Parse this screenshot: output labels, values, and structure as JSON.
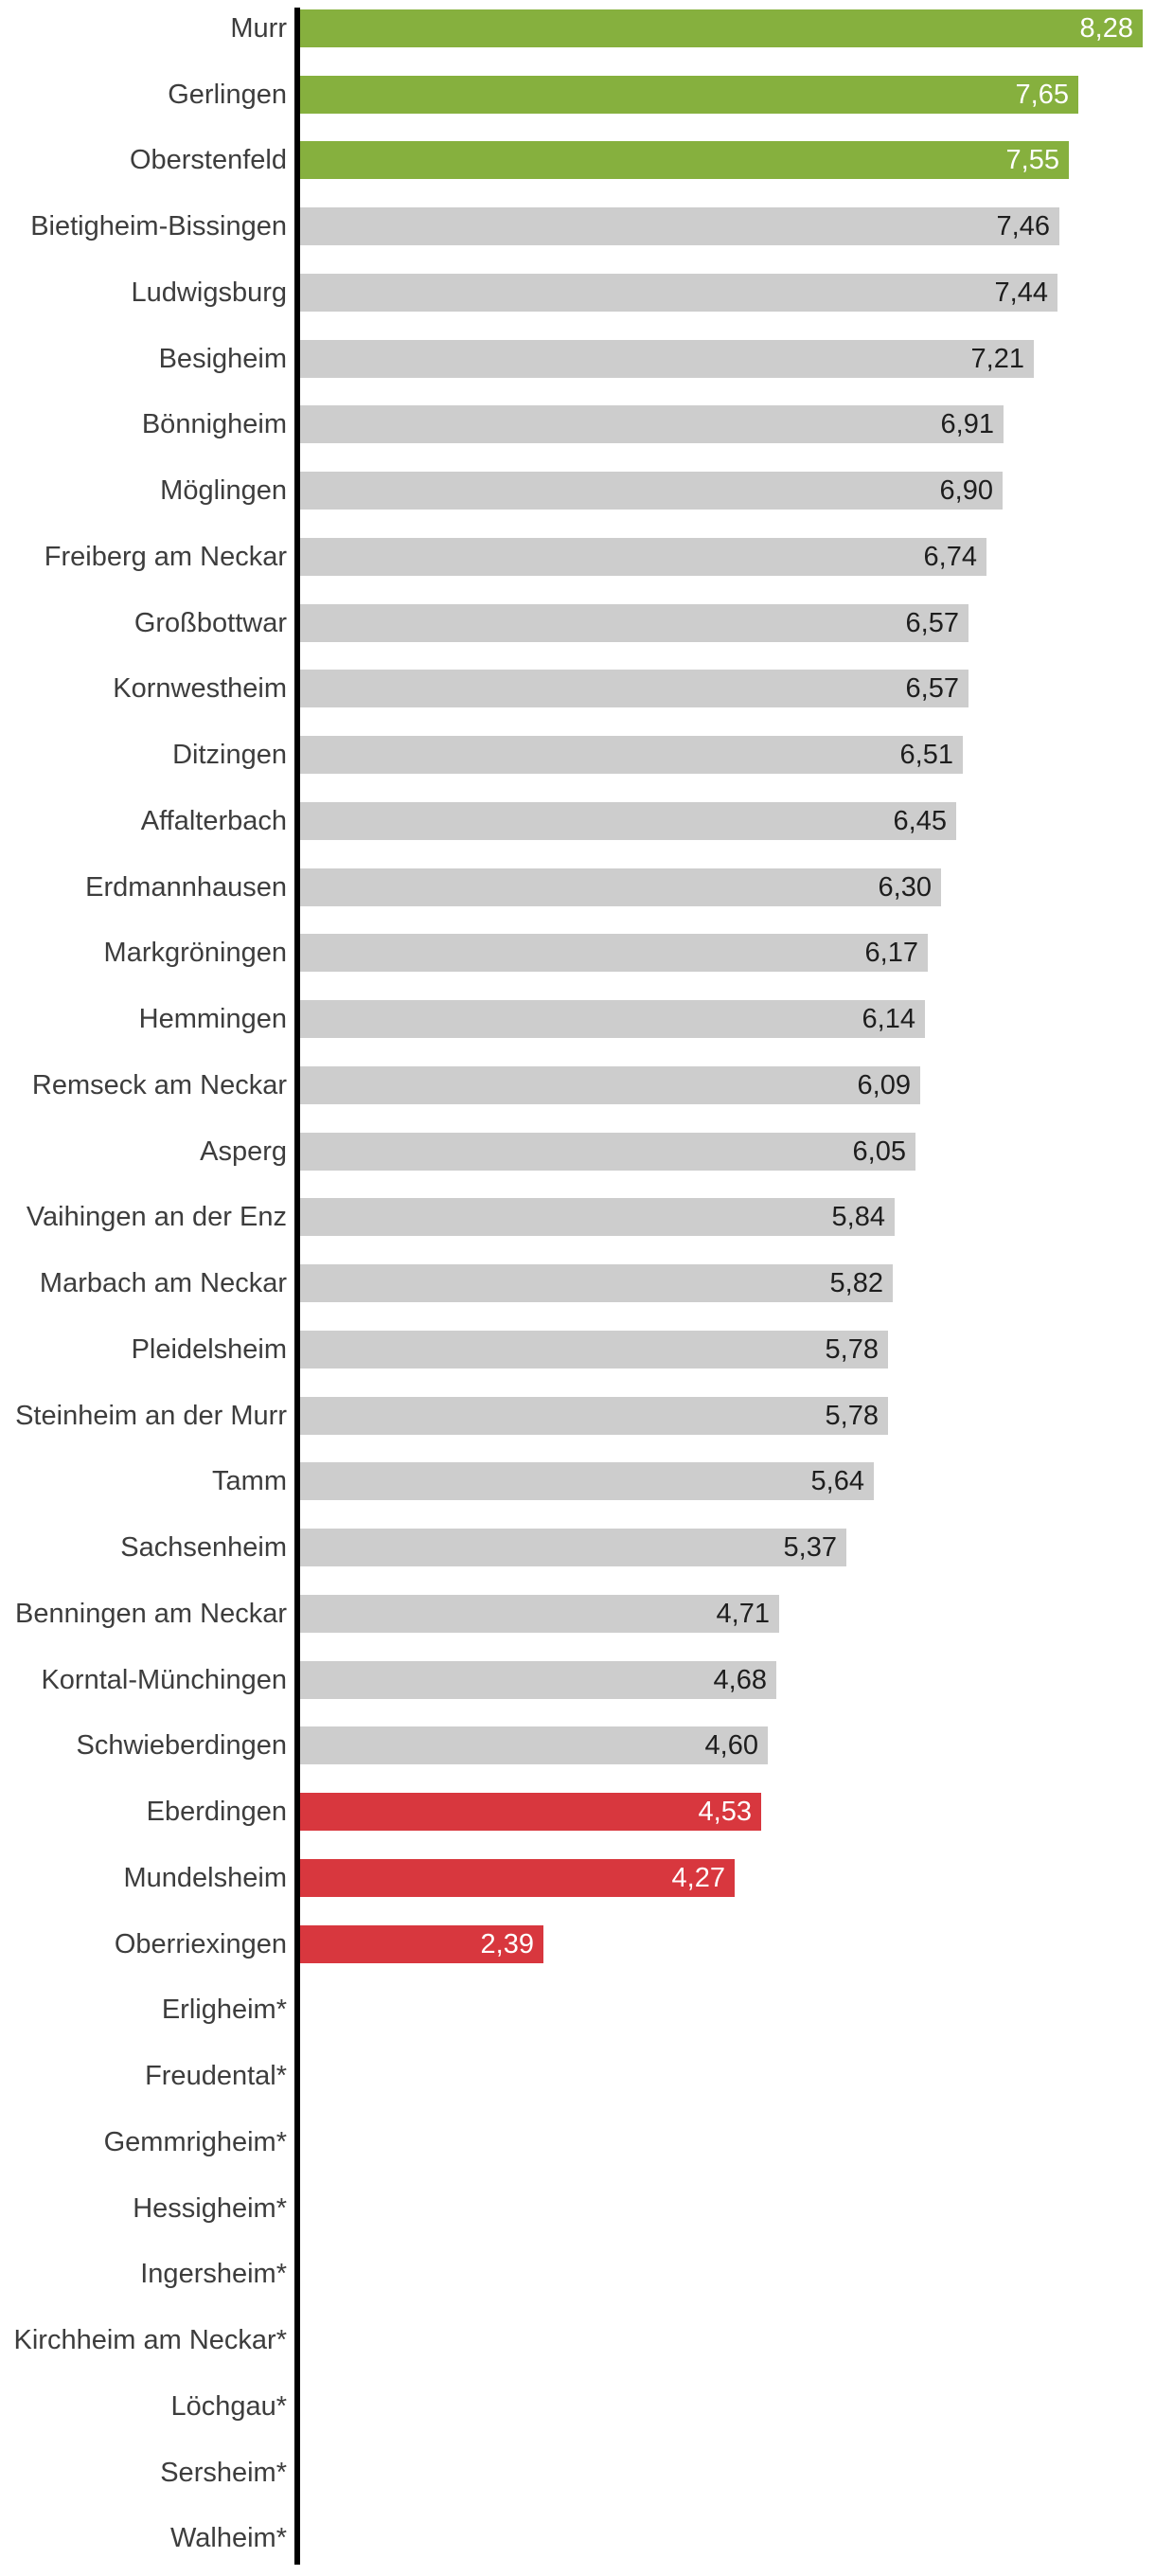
{
  "chart_data": {
    "type": "bar",
    "orientation": "horizontal",
    "title": "",
    "xlabel": "",
    "ylabel": "",
    "xlim": [
      0,
      8.28
    ],
    "grid": false,
    "legend": false,
    "value_format": "decimal-comma, two places",
    "rows": [
      {
        "label": "Murr",
        "value": 8.28,
        "display": "8,28",
        "color": "green"
      },
      {
        "label": "Gerlingen",
        "value": 7.65,
        "display": "7,65",
        "color": "green"
      },
      {
        "label": "Oberstenfeld",
        "value": 7.55,
        "display": "7,55",
        "color": "green"
      },
      {
        "label": "Bietigheim-Bissingen",
        "value": 7.46,
        "display": "7,46",
        "color": "gray"
      },
      {
        "label": "Ludwigsburg",
        "value": 7.44,
        "display": "7,44",
        "color": "gray"
      },
      {
        "label": "Besigheim",
        "value": 7.21,
        "display": "7,21",
        "color": "gray"
      },
      {
        "label": "Bönnigheim",
        "value": 6.91,
        "display": "6,91",
        "color": "gray"
      },
      {
        "label": "Möglingen",
        "value": 6.9,
        "display": "6,90",
        "color": "gray"
      },
      {
        "label": "Freiberg am Neckar",
        "value": 6.74,
        "display": "6,74",
        "color": "gray"
      },
      {
        "label": "Großbottwar",
        "value": 6.57,
        "display": "6,57",
        "color": "gray"
      },
      {
        "label": "Kornwestheim",
        "value": 6.57,
        "display": "6,57",
        "color": "gray"
      },
      {
        "label": "Ditzingen",
        "value": 6.51,
        "display": "6,51",
        "color": "gray"
      },
      {
        "label": "Affalterbach",
        "value": 6.45,
        "display": "6,45",
        "color": "gray"
      },
      {
        "label": "Erdmannhausen",
        "value": 6.3,
        "display": "6,30",
        "color": "gray"
      },
      {
        "label": "Markgröningen",
        "value": 6.17,
        "display": "6,17",
        "color": "gray"
      },
      {
        "label": "Hemmingen",
        "value": 6.14,
        "display": "6,14",
        "color": "gray"
      },
      {
        "label": "Remseck am Neckar",
        "value": 6.09,
        "display": "6,09",
        "color": "gray"
      },
      {
        "label": "Asperg",
        "value": 6.05,
        "display": "6,05",
        "color": "gray"
      },
      {
        "label": "Vaihingen an der Enz",
        "value": 5.84,
        "display": "5,84",
        "color": "gray"
      },
      {
        "label": "Marbach am Neckar",
        "value": 5.82,
        "display": "5,82",
        "color": "gray"
      },
      {
        "label": "Pleidelsheim",
        "value": 5.78,
        "display": "5,78",
        "color": "gray"
      },
      {
        "label": "Steinheim an der Murr",
        "value": 5.78,
        "display": "5,78",
        "color": "gray"
      },
      {
        "label": "Tamm",
        "value": 5.64,
        "display": "5,64",
        "color": "gray"
      },
      {
        "label": "Sachsenheim",
        "value": 5.37,
        "display": "5,37",
        "color": "gray"
      },
      {
        "label": "Benningen am Neckar",
        "value": 4.71,
        "display": "4,71",
        "color": "gray"
      },
      {
        "label": "Korntal-Münchingen",
        "value": 4.68,
        "display": "4,68",
        "color": "gray"
      },
      {
        "label": "Schwieberdingen",
        "value": 4.6,
        "display": "4,60",
        "color": "gray"
      },
      {
        "label": "Eberdingen",
        "value": 4.53,
        "display": "4,53",
        "color": "red"
      },
      {
        "label": "Mundelsheim",
        "value": 4.27,
        "display": "4,27",
        "color": "red"
      },
      {
        "label": "Oberriexingen",
        "value": 2.39,
        "display": "2,39",
        "color": "red"
      },
      {
        "label": "Erligheim*",
        "value": null,
        "display": "",
        "color": "none"
      },
      {
        "label": "Freudental*",
        "value": null,
        "display": "",
        "color": "none"
      },
      {
        "label": "Gemmrigheim*",
        "value": null,
        "display": "",
        "color": "none"
      },
      {
        "label": "Hessigheim*",
        "value": null,
        "display": "",
        "color": "none"
      },
      {
        "label": "Ingersheim*",
        "value": null,
        "display": "",
        "color": "none"
      },
      {
        "label": "Kirchheim am Neckar*",
        "value": null,
        "display": "",
        "color": "none"
      },
      {
        "label": "Löchgau*",
        "value": null,
        "display": "",
        "color": "none"
      },
      {
        "label": "Sersheim*",
        "value": null,
        "display": "",
        "color": "none"
      },
      {
        "label": "Walheim*",
        "value": null,
        "display": "",
        "color": "none"
      }
    ]
  },
  "colors": {
    "green": "#86B03E",
    "gray": "#CDCDCD",
    "red": "#D8373E",
    "axis": "#000000",
    "label_text": "#3D3D3D",
    "value_on_gray": "#1E1E1E",
    "value_on_color": "#FFFFFF"
  }
}
